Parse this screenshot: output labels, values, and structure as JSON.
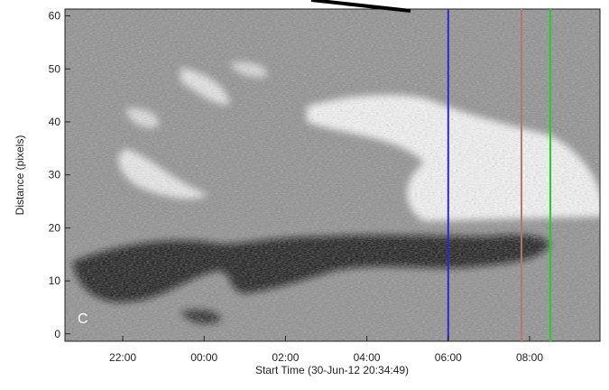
{
  "chart_data": {
    "type": "image",
    "panel_label": "C",
    "xlabel": "Start Time (30-Jun-12 20:34:49)",
    "ylabel": "Distance (pixels)",
    "xlim": [
      20.58,
      33.73
    ],
    "xticks": [
      {
        "value": 22,
        "label": "22:00"
      },
      {
        "value": 24,
        "label": "00:00"
      },
      {
        "value": 26,
        "label": "02:00"
      },
      {
        "value": 28,
        "label": "04:00"
      },
      {
        "value": 30,
        "label": "06:00"
      },
      {
        "value": 32,
        "label": "08:00"
      }
    ],
    "ylim": [
      -1.4,
      61.3
    ],
    "yticks": [
      0,
      10,
      20,
      30,
      40,
      50,
      60
    ],
    "vlines": [
      {
        "x": 30,
        "color": "#2a2ad0"
      },
      {
        "x": 31.8,
        "color": "#c07070"
      },
      {
        "x": 32.51,
        "color": "#20d020"
      }
    ]
  }
}
